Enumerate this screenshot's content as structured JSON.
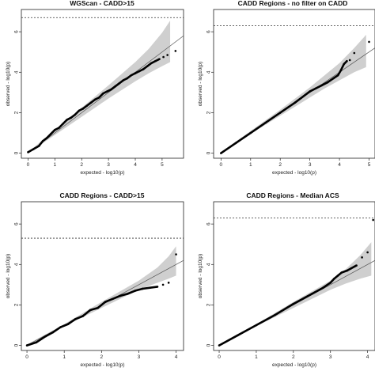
{
  "chart_data": [
    {
      "type": "scatter",
      "title": "WGScan - CADD>15",
      "xlabel": "expected - log10(p)",
      "ylabel": "observed - log10(p)",
      "xlim": [
        -0.25,
        5.8
      ],
      "ylim": [
        -0.25,
        7.1
      ],
      "xticks": [
        "0",
        "1",
        "2",
        "3",
        "4",
        "5"
      ],
      "yticks": [
        "0",
        "2",
        "4",
        "6"
      ],
      "threshold": 6.7,
      "ci_upper": [
        [
          0,
          0.05
        ],
        [
          1,
          1.15
        ],
        [
          2,
          2.25
        ],
        [
          3,
          3.35
        ],
        [
          4,
          4.5
        ],
        [
          4.5,
          5.15
        ],
        [
          5,
          5.95
        ],
        [
          5.3,
          6.55
        ]
      ],
      "ci_lower": [
        [
          0,
          0
        ],
        [
          1,
          0.9
        ],
        [
          2,
          1.8
        ],
        [
          3,
          2.7
        ],
        [
          4,
          3.55
        ],
        [
          4.5,
          3.95
        ],
        [
          5,
          4.3
        ],
        [
          5.3,
          4.5
        ]
      ],
      "series": [
        {
          "points": [
            [
              0,
              0.05
            ],
            [
              0.2,
              0.2
            ],
            [
              0.4,
              0.35
            ],
            [
              0.55,
              0.6
            ],
            [
              0.7,
              0.75
            ],
            [
              0.85,
              0.95
            ],
            [
              1.0,
              1.15
            ],
            [
              1.15,
              1.25
            ],
            [
              1.3,
              1.45
            ],
            [
              1.45,
              1.65
            ],
            [
              1.6,
              1.75
            ],
            [
              1.75,
              1.9
            ],
            [
              1.9,
              2.1
            ],
            [
              2.05,
              2.2
            ],
            [
              2.2,
              2.35
            ],
            [
              2.35,
              2.5
            ],
            [
              2.5,
              2.65
            ],
            [
              2.65,
              2.75
            ],
            [
              2.8,
              2.95
            ],
            [
              2.95,
              3.05
            ],
            [
              3.1,
              3.15
            ],
            [
              3.25,
              3.3
            ],
            [
              3.4,
              3.45
            ],
            [
              3.55,
              3.6
            ],
            [
              3.7,
              3.7
            ],
            [
              3.85,
              3.85
            ],
            [
              4.0,
              3.95
            ],
            [
              4.15,
              4.05
            ],
            [
              4.3,
              4.15
            ],
            [
              4.45,
              4.3
            ],
            [
              4.6,
              4.45
            ],
            [
              4.75,
              4.55
            ],
            [
              4.9,
              4.65
            ],
            [
              5.05,
              4.75
            ],
            [
              5.2,
              4.85
            ],
            [
              5.5,
              5.05
            ]
          ]
        }
      ]
    },
    {
      "type": "scatter",
      "title": "CADD Regions - no filter on CADD",
      "xlabel": "expected - log10(p)",
      "ylabel": "observed - log10(p)",
      "xlim": [
        -0.25,
        5.2
      ],
      "ylim": [
        -0.25,
        7.1
      ],
      "xticks": [
        "0",
        "1",
        "2",
        "3",
        "4",
        "5"
      ],
      "yticks": [
        "0",
        "2",
        "4",
        "6"
      ],
      "threshold": 6.3,
      "ci_upper": [
        [
          0,
          0.05
        ],
        [
          1,
          1.1
        ],
        [
          2,
          2.15
        ],
        [
          3,
          3.25
        ],
        [
          3.5,
          3.85
        ],
        [
          4,
          4.45
        ],
        [
          4.5,
          5.2
        ],
        [
          4.9,
          5.85
        ]
      ],
      "ci_lower": [
        [
          0,
          0
        ],
        [
          1,
          0.95
        ],
        [
          2,
          1.85
        ],
        [
          3,
          2.75
        ],
        [
          3.5,
          3.2
        ],
        [
          4,
          3.6
        ],
        [
          4.5,
          4.0
        ],
        [
          4.9,
          4.25
        ]
      ],
      "series": [
        {
          "points": [
            [
              0,
              0
            ],
            [
              0.5,
              0.5
            ],
            [
              1.0,
              1.0
            ],
            [
              1.5,
              1.5
            ],
            [
              2.0,
              2.0
            ],
            [
              2.5,
              2.5
            ],
            [
              3.0,
              3.05
            ],
            [
              3.2,
              3.2
            ],
            [
              3.4,
              3.35
            ],
            [
              3.6,
              3.5
            ],
            [
              3.8,
              3.7
            ],
            [
              3.95,
              3.85
            ],
            [
              4.05,
              4.1
            ],
            [
              4.15,
              4.4
            ],
            [
              4.25,
              4.55
            ],
            [
              4.35,
              4.6
            ],
            [
              4.5,
              4.95
            ],
            [
              5.0,
              5.5
            ]
          ]
        }
      ]
    },
    {
      "type": "scatter",
      "title": "CADD Regions - CADD>15",
      "xlabel": "expected - log10(p)",
      "ylabel": "observed - log10(p)",
      "xlim": [
        -0.15,
        4.2
      ],
      "ylim": [
        -0.25,
        7.1
      ],
      "xticks": [
        "0",
        "1",
        "2",
        "3",
        "4"
      ],
      "yticks": [
        "0",
        "2",
        "4",
        "6"
      ],
      "threshold": 5.3,
      "ci_upper": [
        [
          0,
          0.05
        ],
        [
          1,
          1.05
        ],
        [
          2,
          2.15
        ],
        [
          3,
          3.2
        ],
        [
          3.5,
          3.85
        ],
        [
          3.8,
          4.4
        ],
        [
          4.0,
          4.9
        ]
      ],
      "ci_lower": [
        [
          0,
          0
        ],
        [
          1,
          0.95
        ],
        [
          2,
          1.85
        ],
        [
          3,
          2.75
        ],
        [
          3.5,
          3.1
        ],
        [
          3.8,
          3.3
        ],
        [
          4.0,
          3.45
        ]
      ],
      "series": [
        {
          "points": [
            [
              0,
              0
            ],
            [
              0.25,
              0.15
            ],
            [
              0.5,
              0.45
            ],
            [
              0.7,
              0.65
            ],
            [
              0.9,
              0.9
            ],
            [
              1.1,
              1.05
            ],
            [
              1.3,
              1.3
            ],
            [
              1.5,
              1.45
            ],
            [
              1.7,
              1.75
            ],
            [
              1.9,
              1.85
            ],
            [
              2.1,
              2.15
            ],
            [
              2.3,
              2.3
            ],
            [
              2.5,
              2.45
            ],
            [
              2.7,
              2.55
            ],
            [
              2.9,
              2.7
            ],
            [
              3.1,
              2.8
            ],
            [
              3.3,
              2.85
            ],
            [
              3.5,
              2.9
            ],
            [
              3.65,
              3.0
            ],
            [
              3.8,
              3.1
            ],
            [
              4.0,
              4.5
            ]
          ]
        }
      ]
    },
    {
      "type": "scatter",
      "title": "CADD Regions - Median ACS",
      "xlabel": "expected - log10(p)",
      "ylabel": "observed - log10(p)",
      "xlim": [
        -0.15,
        4.2
      ],
      "ylim": [
        -0.25,
        7.1
      ],
      "xticks": [
        "0",
        "1",
        "2",
        "3",
        "4"
      ],
      "yticks": [
        "0",
        "2",
        "4",
        "6"
      ],
      "threshold": 6.3,
      "ci_upper": [
        [
          0,
          0.05
        ],
        [
          1,
          1.05
        ],
        [
          2,
          2.15
        ],
        [
          3,
          3.2
        ],
        [
          3.4,
          3.75
        ],
        [
          3.8,
          4.45
        ],
        [
          4.1,
          5.1
        ]
      ],
      "ci_lower": [
        [
          0,
          0
        ],
        [
          1,
          0.95
        ],
        [
          2,
          1.85
        ],
        [
          3,
          2.75
        ],
        [
          3.4,
          3.05
        ],
        [
          3.8,
          3.3
        ],
        [
          4.1,
          3.45
        ]
      ],
      "series": [
        {
          "points": [
            [
              0,
              0
            ],
            [
              0.5,
              0.5
            ],
            [
              1.0,
              1.0
            ],
            [
              1.5,
              1.5
            ],
            [
              2.0,
              2.05
            ],
            [
              2.5,
              2.55
            ],
            [
              2.8,
              2.85
            ],
            [
              3.0,
              3.1
            ],
            [
              3.1,
              3.3
            ],
            [
              3.2,
              3.45
            ],
            [
              3.3,
              3.6
            ],
            [
              3.45,
              3.7
            ],
            [
              3.55,
              3.8
            ],
            [
              3.7,
              3.95
            ],
            [
              3.85,
              4.35
            ],
            [
              4.0,
              4.6
            ],
            [
              4.15,
              6.2
            ]
          ]
        }
      ]
    }
  ]
}
